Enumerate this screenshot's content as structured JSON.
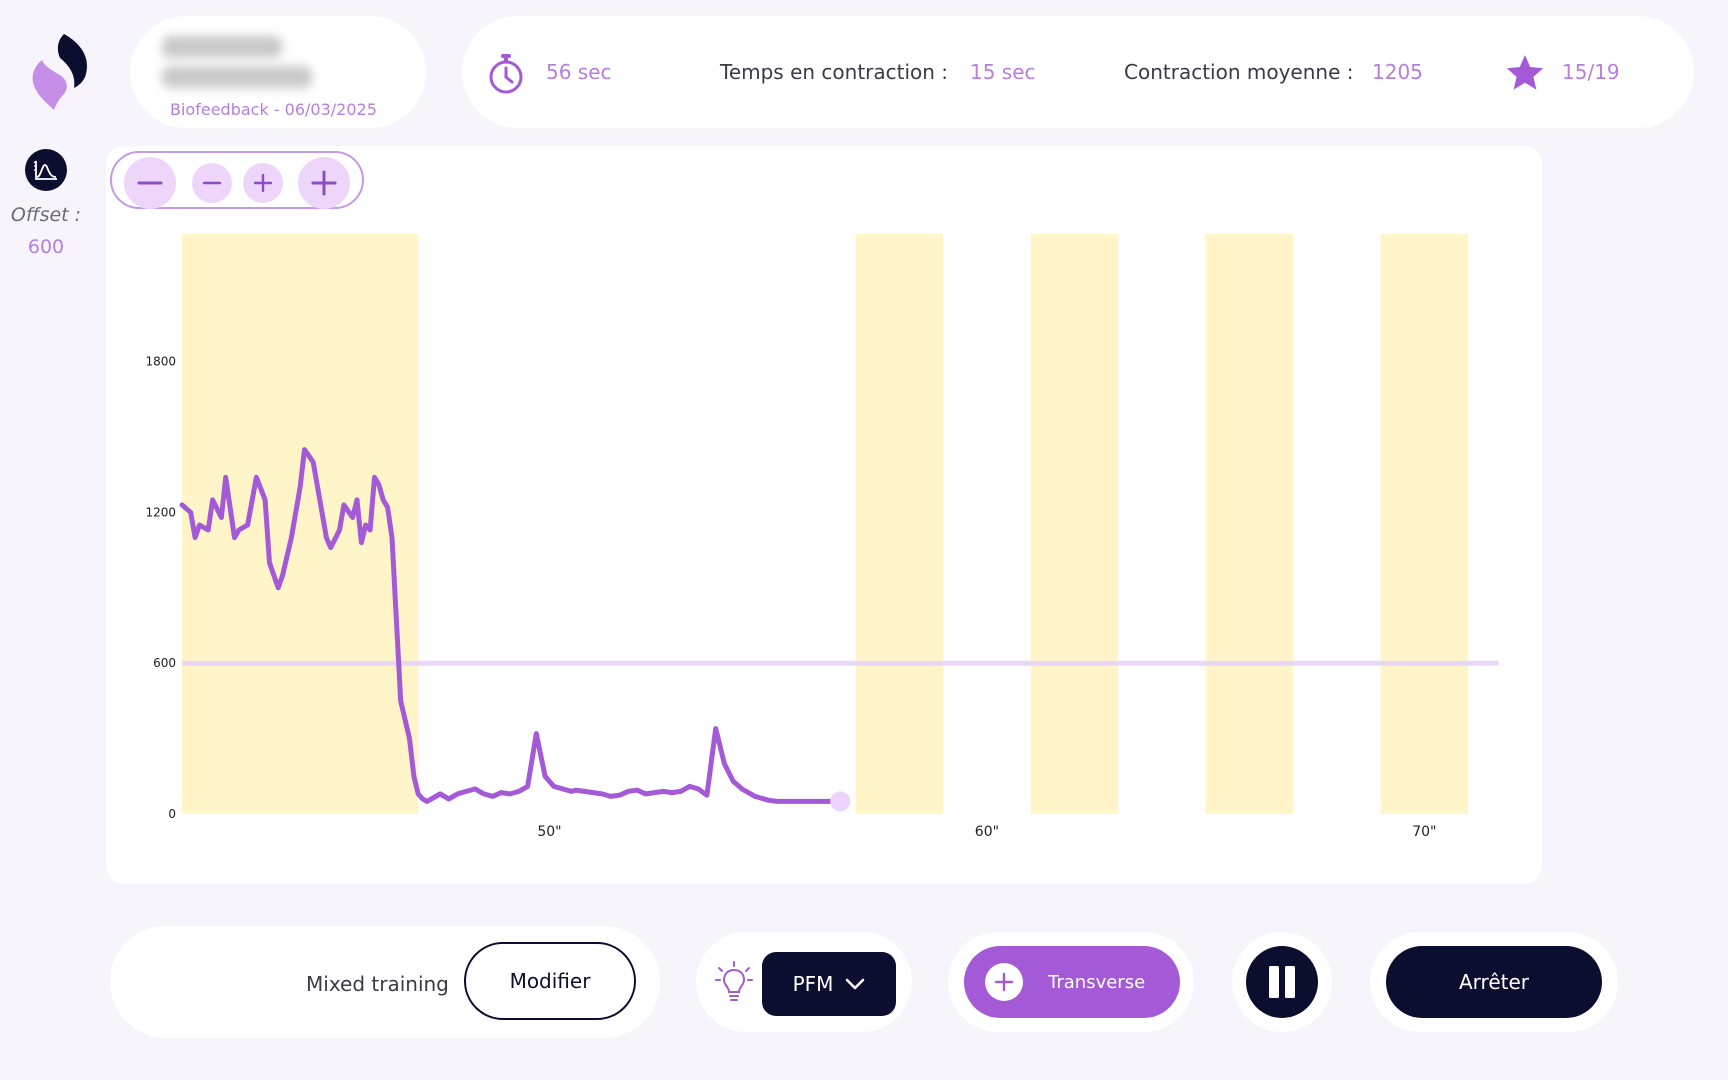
{
  "header": {
    "session_label": "Biofeedback - 06/03/2025"
  },
  "stats": {
    "timer_value": "56 sec",
    "contraction_time_label": "Temps en contraction :",
    "contraction_time_value": "15 sec",
    "mean_contraction_label": "Contraction moyenne :",
    "mean_contraction_value": "1205",
    "score_value": "15/19"
  },
  "offset": {
    "label": "Offset :",
    "value": "600"
  },
  "zoom": {
    "buttons": [
      "zoom-out-large",
      "zoom-out-small",
      "zoom-in-small",
      "zoom-in-large"
    ]
  },
  "chart_data": {
    "type": "line",
    "title": "",
    "xlabel": "",
    "ylabel": "",
    "xlim": [
      41.6,
      71.5
    ],
    "ylim": [
      0,
      2300
    ],
    "y_ticks": [
      0,
      600,
      1200,
      1800
    ],
    "y_tick_labels": [
      "0",
      "600",
      "1200",
      "1800"
    ],
    "x_ticks": [
      50,
      60,
      70
    ],
    "x_tick_labels": [
      "50\"",
      "60\"",
      "70\""
    ],
    "offset_line": 600,
    "contraction_windows": [
      [
        41.6,
        47.0
      ],
      [
        57.0,
        59.0
      ],
      [
        61.0,
        63.0
      ],
      [
        65.0,
        67.0
      ],
      [
        69.0,
        71.0
      ]
    ],
    "series": [
      {
        "x": [
          41.6,
          41.8,
          41.9,
          42.0,
          42.2,
          42.3,
          42.5,
          42.6,
          42.8,
          42.9,
          43.1,
          43.3,
          43.5,
          43.6,
          43.8,
          43.9,
          44.1,
          44.3,
          44.4,
          44.6,
          44.8,
          44.9,
          45.0,
          45.2,
          45.3,
          45.5,
          45.6,
          45.7,
          45.8,
          45.9,
          46.0,
          46.1,
          46.2,
          46.3,
          46.4,
          46.6,
          46.8,
          46.9,
          47.0,
          47.1,
          47.2,
          47.3,
          47.5,
          47.7,
          47.9,
          48.1,
          48.3,
          48.5,
          48.7,
          48.9,
          49.1,
          49.3,
          49.5,
          49.7,
          49.9,
          50.1,
          50.3,
          50.5,
          50.6,
          50.8,
          51.0,
          51.2,
          51.4,
          51.6,
          51.8,
          52.0,
          52.2,
          52.4,
          52.6,
          52.8,
          53.0,
          53.2,
          53.4,
          53.6,
          53.8,
          54.0,
          54.2,
          54.4,
          54.6,
          54.7,
          54.9,
          55.0,
          55.2,
          55.4,
          55.6,
          55.8,
          56.0,
          56.2,
          56.6
        ],
        "y": [
          1230,
          1200,
          1100,
          1150,
          1130,
          1250,
          1180,
          1340,
          1100,
          1130,
          1150,
          1340,
          1250,
          1000,
          900,
          950,
          1100,
          1300,
          1450,
          1400,
          1200,
          1100,
          1060,
          1130,
          1230,
          1180,
          1250,
          1080,
          1150,
          1130,
          1340,
          1310,
          1250,
          1220,
          1100,
          450,
          300,
          150,
          80,
          60,
          50,
          60,
          80,
          60,
          80,
          90,
          100,
          80,
          70,
          85,
          80,
          90,
          110,
          320,
          150,
          110,
          100,
          90,
          95,
          90,
          85,
          80,
          70,
          75,
          90,
          95,
          80,
          85,
          90,
          85,
          90,
          110,
          100,
          75,
          340,
          200,
          130,
          100,
          80,
          70,
          60,
          55,
          50,
          50,
          50,
          50,
          50,
          50,
          50
        ]
      }
    ]
  },
  "controls": {
    "mode_label": "Mixed training",
    "modify_label": "Modifier",
    "muscle_select_value": "PFM",
    "exercise_label": "Transverse",
    "stop_label": "Arrêter"
  },
  "colors": {
    "accent": "#a45ad6",
    "accent_light": "#b57ee0",
    "dark": "#0b0e2e",
    "contraction_window": "#fff5c8",
    "offset_line": "#ead7f6"
  }
}
